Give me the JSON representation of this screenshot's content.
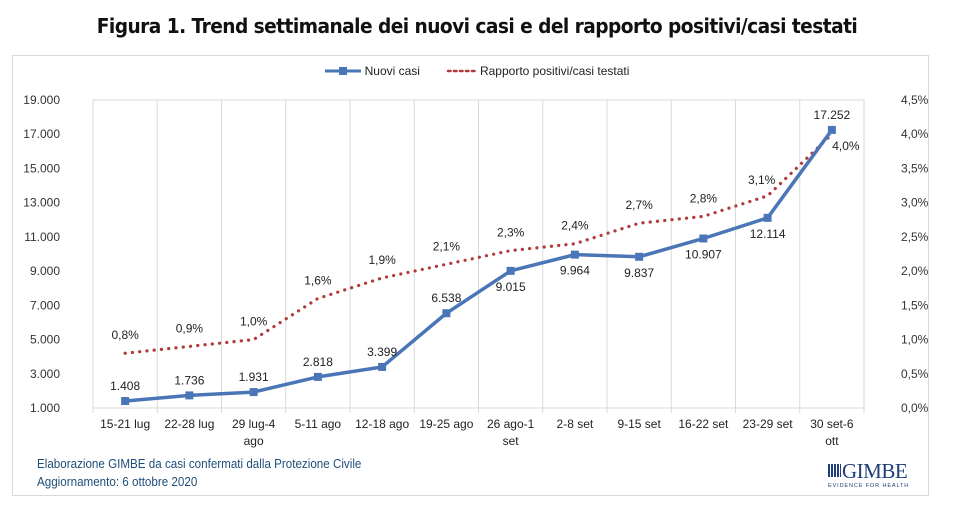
{
  "title": "Figura 1. Trend settimanale dei nuovi casi e del rapporto positivi/casi testati",
  "legend": {
    "series1": "Nuovi casi",
    "series2": "Rapporto positivi/casi testati"
  },
  "footer": {
    "line1": "Elaborazione GIMBE da casi confermati dalla Protezione Civile",
    "line2": "Aggiornamento: 6 ottobre 2020"
  },
  "logo": {
    "name": "GIMBE",
    "tagline": "EVIDENCE FOR HEALTH"
  },
  "colors": {
    "series1": "#4a76b8",
    "series2": "#b13a3a",
    "grid": "#d9d9d9",
    "footer": "#1f4e79"
  },
  "chart_data": {
    "type": "line",
    "title": "Figura 1. Trend settimanale dei nuovi casi e del rapporto positivi/casi testati",
    "categories": [
      [
        "15-21 lug"
      ],
      [
        "22-28 lug"
      ],
      [
        "29 lug-4",
        "ago"
      ],
      [
        "5-11 ago"
      ],
      [
        "12-18 ago"
      ],
      [
        "19-25 ago"
      ],
      [
        "26 ago-1",
        "set"
      ],
      [
        "2-8 set"
      ],
      [
        "9-15 set"
      ],
      [
        "16-22 set"
      ],
      [
        "23-29 set"
      ],
      [
        "30 set-6",
        "ott"
      ]
    ],
    "series": [
      {
        "name": "Nuovi casi",
        "axis": "left",
        "style": "solid-with-square-markers",
        "values": [
          1408,
          1736,
          1931,
          2818,
          3399,
          6538,
          9015,
          9964,
          9837,
          10907,
          12114,
          17252
        ],
        "labels": [
          "1.408",
          "1.736",
          "1.931",
          "2.818",
          "3.399",
          "6.538",
          "9.015",
          "9.964",
          "9.837",
          "10.907",
          "12.114",
          "17.252"
        ]
      },
      {
        "name": "Rapporto positivi/casi testati",
        "axis": "right",
        "style": "dotted",
        "values": [
          0.8,
          0.9,
          1.0,
          1.6,
          1.9,
          2.1,
          2.3,
          2.4,
          2.7,
          2.8,
          3.1,
          4.0
        ],
        "labels": [
          "0,8%",
          "0,9%",
          "1,0%",
          "1,6%",
          "1,9%",
          "2,1%",
          "2,3%",
          "2,4%",
          "2,7%",
          "2,8%",
          "3,1%",
          "4,0%"
        ]
      }
    ],
    "y_left": {
      "lim": [
        1000,
        19000
      ],
      "ticks": [
        1000,
        3000,
        5000,
        7000,
        9000,
        11000,
        13000,
        15000,
        17000,
        19000
      ],
      "tick_labels": [
        "1.000",
        "3.000",
        "5.000",
        "7.000",
        "9.000",
        "11.000",
        "13.000",
        "15.000",
        "17.000",
        "19.000"
      ]
    },
    "y_right": {
      "lim": [
        0,
        4.5
      ],
      "ticks": [
        0,
        0.5,
        1.0,
        1.5,
        2.0,
        2.5,
        3.0,
        3.5,
        4.0,
        4.5
      ],
      "tick_labels": [
        "0,0%",
        "0,5%",
        "1,0%",
        "1,5%",
        "2,0%",
        "2,5%",
        "3,0%",
        "3,5%",
        "4,0%",
        "4,5%"
      ]
    },
    "grid": "vertical",
    "legend_position": "top-center"
  }
}
